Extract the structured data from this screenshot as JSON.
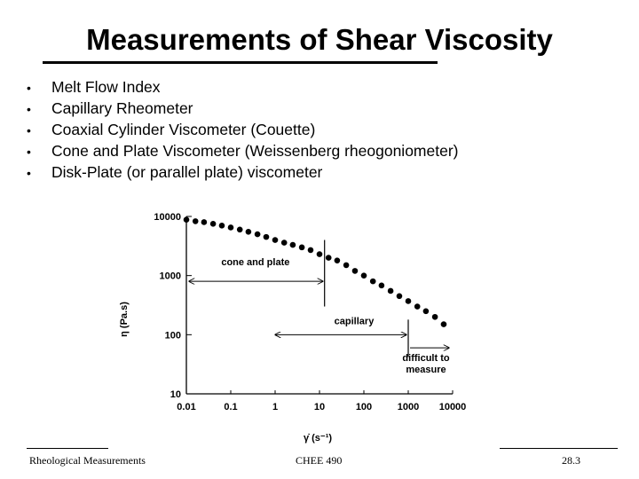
{
  "slide": {
    "title": "Measurements of Shear Viscosity",
    "bullets": [
      "Melt Flow Index",
      "Capillary Rheometer",
      "Coaxial Cylinder Viscometer (Couette)",
      "Cone and Plate Viscometer (Weissenberg rheogoniometer)",
      "Disk-Plate (or parallel plate) viscometer"
    ],
    "footer": {
      "left": "Rheological Measurements",
      "center": "CHEE 490",
      "right": "28.3"
    }
  },
  "chart_data": {
    "type": "scatter",
    "title": "",
    "xlabel": "γ̇ (s⁻¹)",
    "ylabel": "η (Pa.s)",
    "xscale": "log",
    "yscale": "log",
    "xlim": [
      0.01,
      10000
    ],
    "ylim": [
      10,
      10000
    ],
    "xticks": [
      0.01,
      0.1,
      1,
      10,
      100,
      1000,
      10000
    ],
    "xtick_labels": [
      "0.01",
      "0.1",
      "1",
      "10",
      "100",
      "1000",
      "10000"
    ],
    "yticks": [
      10,
      100,
      1000,
      10000
    ],
    "ytick_labels": [
      "10",
      "100",
      "1000",
      "10000"
    ],
    "series": [
      {
        "x": [
          0.01,
          0.016,
          0.025,
          0.04,
          0.063,
          0.1,
          0.16,
          0.25,
          0.4,
          0.63,
          1,
          1.6,
          2.5,
          4,
          6.3,
          10,
          16,
          25,
          40,
          63,
          100,
          160,
          250,
          400,
          630,
          1000,
          1600,
          2500,
          4000,
          6300
        ],
        "y": [
          8800,
          8300,
          8000,
          7500,
          7000,
          6500,
          6000,
          5500,
          5000,
          4500,
          4000,
          3600,
          3300,
          3000,
          2700,
          2300,
          2000,
          1800,
          1500,
          1200,
          1000,
          800,
          680,
          550,
          450,
          370,
          300,
          250,
          200,
          150
        ]
      }
    ],
    "annotations": [
      {
        "text": "cone and plate",
        "range": [
          0.01,
          13
        ]
      },
      {
        "text": "capillary",
        "range": [
          1,
          1000
        ]
      },
      {
        "text": "difficult to measure",
        "range": [
          1000,
          10000
        ]
      }
    ],
    "grid": false,
    "legend": "none"
  }
}
